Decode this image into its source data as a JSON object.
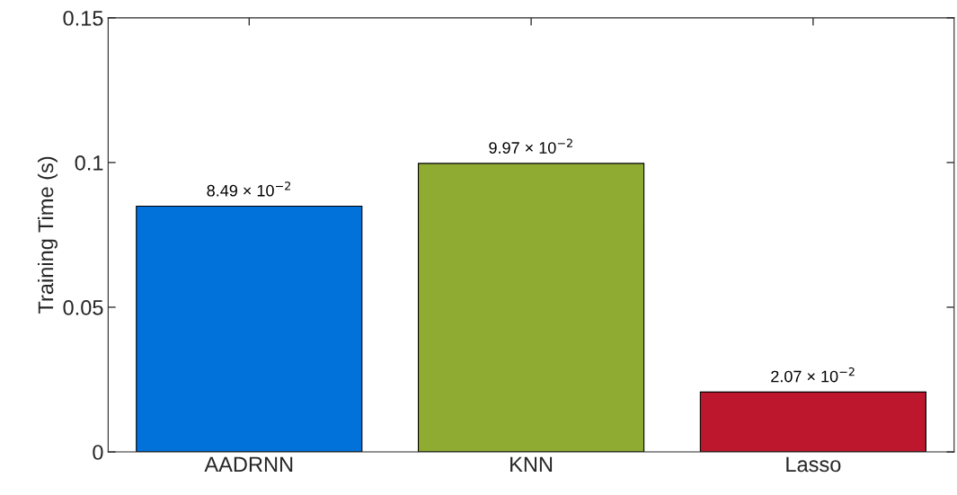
{
  "chart_data": {
    "type": "bar",
    "ylabel": "Training Time (s)",
    "categories": [
      "AADRNN",
      "KNN",
      "Lasso"
    ],
    "values": [
      0.0849,
      0.0997,
      0.0207
    ],
    "colors": [
      "#0072d9",
      "#8fab32",
      "#bd172d"
    ],
    "value_labels": [
      "8.49 × 10$^{−2}$",
      "9.97 × 10$^{−2}$",
      "2.07 × 10$^{−2}$"
    ],
    "ylim": [
      0,
      0.15
    ],
    "yticks": [
      0,
      0.05,
      0.1,
      0.15
    ],
    "grid": false,
    "legend": false
  }
}
